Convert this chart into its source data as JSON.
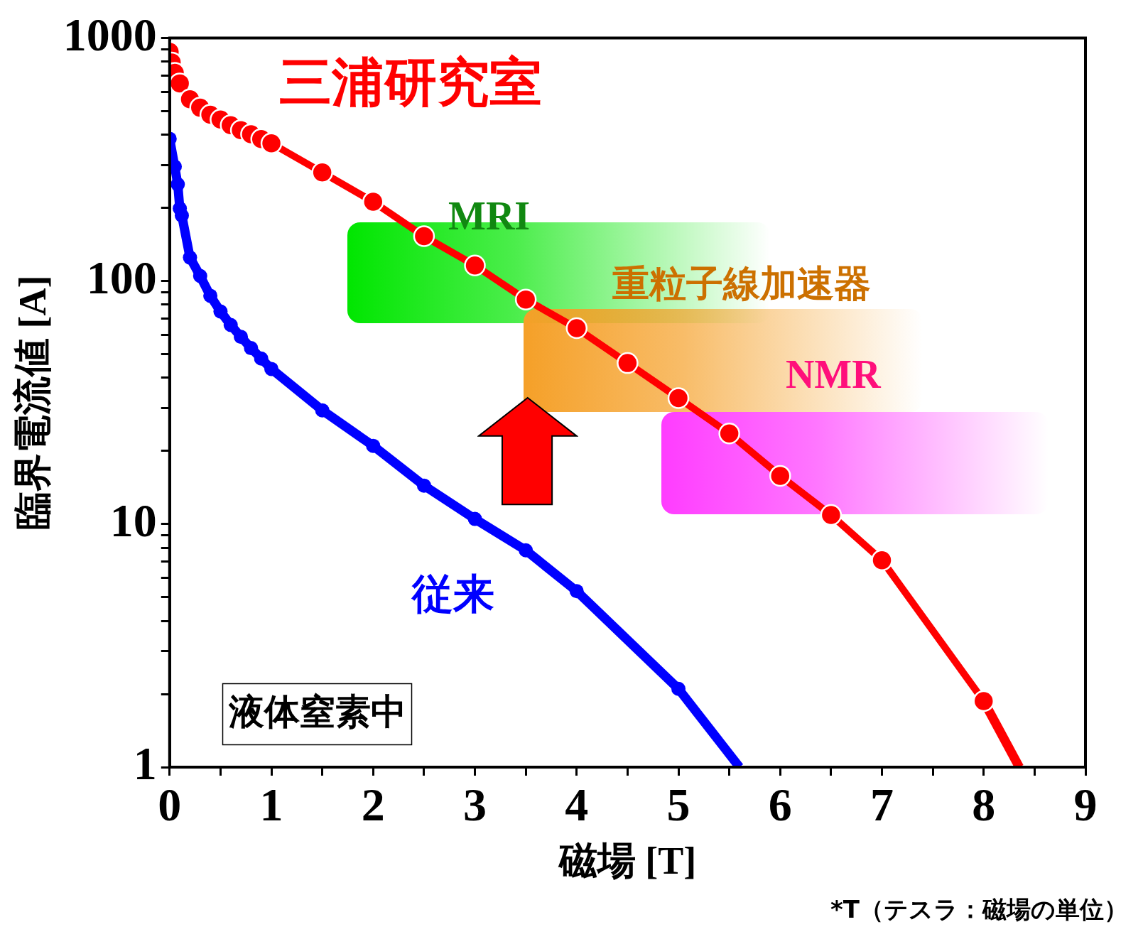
{
  "chart_data": {
    "type": "line",
    "xlabel": "磁場 [T]",
    "ylabel": "臨界電流値 [A]",
    "log": "y",
    "marker": "circle",
    "line_style": "solid",
    "grid": false,
    "legend": false,
    "xlim": [
      0,
      9
    ],
    "xticks": [
      0,
      {
        "value": 0.5,
        "label": null
      },
      1,
      {
        "value": 1.5,
        "label": null
      },
      2,
      {
        "value": 2.5,
        "label": null
      },
      3,
      {
        "value": 3.5,
        "label": null
      },
      4,
      {
        "value": 4.5,
        "label": null
      },
      5,
      {
        "value": 5.5,
        "label": null
      },
      6,
      {
        "value": 6.5,
        "label": null
      },
      7,
      {
        "value": 7.5,
        "label": null
      },
      8,
      {
        "value": 8.5,
        "label": null
      },
      9
    ],
    "ylim": [
      1,
      1000
    ],
    "yticks": [
      1,
      {
        "value": 2,
        "label": null
      },
      {
        "value": 3,
        "label": null
      },
      {
        "value": 4,
        "label": null
      },
      {
        "value": 5,
        "label": null
      },
      {
        "value": 6,
        "label": null
      },
      {
        "value": 7,
        "label": null
      },
      {
        "value": 8,
        "label": null
      },
      {
        "value": 9,
        "label": null
      },
      10,
      {
        "value": 20,
        "label": null
      },
      {
        "value": 30,
        "label": null
      },
      {
        "value": 40,
        "label": null
      },
      {
        "value": 50,
        "label": null
      },
      {
        "value": 60,
        "label": null
      },
      {
        "value": 70,
        "label": null
      },
      {
        "value": 80,
        "label": null
      },
      {
        "value": 90,
        "label": null
      },
      100,
      {
        "value": 200,
        "label": null
      },
      {
        "value": 300,
        "label": null
      },
      {
        "value": 400,
        "label": null
      },
      {
        "value": 500,
        "label": null
      },
      {
        "value": 600,
        "label": null
      },
      {
        "value": 700,
        "label": null
      },
      {
        "value": 800,
        "label": null
      },
      {
        "value": 900,
        "label": null
      },
      1000
    ],
    "series": [
      {
        "name": "三浦研究室",
        "color": "#ff0000",
        "x": [
          0,
          0.02,
          0.05,
          0.1,
          0.2,
          0.3,
          0.4,
          0.5,
          0.6,
          0.7,
          0.8,
          0.9,
          1,
          1.5,
          2,
          2.5,
          3,
          3.5,
          4,
          4.5,
          5,
          5.5,
          6,
          6.5,
          7,
          8
        ],
        "values": [
          877,
          794,
          719,
          651,
          560,
          517,
          484,
          462,
          438,
          418,
          402,
          384,
          369,
          280,
          212,
          153,
          116,
          84,
          64,
          46,
          33,
          23.6,
          15.8,
          10.9,
          7.1,
          1.87
        ]
      },
      {
        "type": "line",
        "marker": "none",
        "color": "#ff0000",
        "x": [
          8,
          8.35
        ],
        "values": [
          1.87,
          1
        ]
      },
      {
        "name": "従来",
        "color": "#0000ff",
        "x": [
          0,
          0.05,
          0.08,
          0.1,
          0.12,
          0.2,
          0.3,
          0.4,
          0.5,
          0.6,
          0.7,
          0.8,
          0.9,
          1,
          1.5,
          2,
          2.5,
          3,
          3.5,
          4,
          5
        ],
        "values": [
          385,
          296,
          250,
          199,
          186,
          125,
          105,
          87,
          75,
          66,
          59,
          53,
          48,
          43.5,
          29.4,
          21,
          14.4,
          10.5,
          7.8,
          5.3,
          2.1
        ]
      },
      {
        "type": "line",
        "marker": "none",
        "color": "#0000ff",
        "x": [
          5,
          5.6
        ],
        "values": [
          2.1,
          1
        ]
      }
    ],
    "annotations": [
      "MRI",
      "重粒子線加速器",
      "NMR",
      "液体窒素中",
      "*T（テスラ：磁場の単位）"
    ]
  }
}
